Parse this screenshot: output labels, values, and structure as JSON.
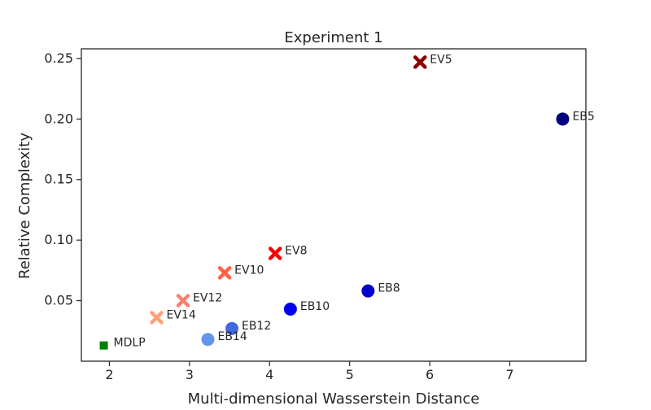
{
  "chart_data": {
    "type": "scatter",
    "title": "Experiment 1",
    "xlabel": "Multi-dimensional Wasserstein Distance",
    "ylabel": "Relative Complexity",
    "xlim": [
      1.65,
      7.95
    ],
    "ylim": [
      0.0,
      0.258
    ],
    "xticks": [
      2,
      3,
      4,
      5,
      6,
      7
    ],
    "yticks": [
      0.05,
      0.1,
      0.15,
      0.2,
      0.25
    ],
    "xtick_labels": [
      "2",
      "3",
      "4",
      "5",
      "6",
      "7"
    ],
    "ytick_labels": [
      "0.05",
      "0.10",
      "0.15",
      "0.20",
      "0.25"
    ],
    "grid": false,
    "legend": "none",
    "points": [
      {
        "label": "MDLP",
        "x": 1.93,
        "y": 0.013,
        "marker": "square",
        "color": "#008000"
      },
      {
        "label": "EB5",
        "x": 7.66,
        "y": 0.2,
        "marker": "circle",
        "color": "#000080"
      },
      {
        "label": "EB8",
        "x": 5.23,
        "y": 0.058,
        "marker": "circle",
        "color": "#0000cd"
      },
      {
        "label": "EB10",
        "x": 4.26,
        "y": 0.043,
        "marker": "circle",
        "color": "#0000ee"
      },
      {
        "label": "EB12",
        "x": 3.53,
        "y": 0.027,
        "marker": "circle",
        "color": "#4169e1"
      },
      {
        "label": "EB14",
        "x": 3.23,
        "y": 0.018,
        "marker": "circle",
        "color": "#6495ed"
      },
      {
        "label": "EV5",
        "x": 5.88,
        "y": 0.247,
        "marker": "x",
        "color": "#8b0000"
      },
      {
        "label": "EV8",
        "x": 4.07,
        "y": 0.089,
        "marker": "x",
        "color": "#ff0000"
      },
      {
        "label": "EV10",
        "x": 3.44,
        "y": 0.073,
        "marker": "x",
        "color": "#ff6347"
      },
      {
        "label": "EV12",
        "x": 2.92,
        "y": 0.05,
        "marker": "x",
        "color": "#fa8072"
      },
      {
        "label": "EV14",
        "x": 2.59,
        "y": 0.036,
        "marker": "x",
        "color": "#ffa07a"
      }
    ]
  }
}
